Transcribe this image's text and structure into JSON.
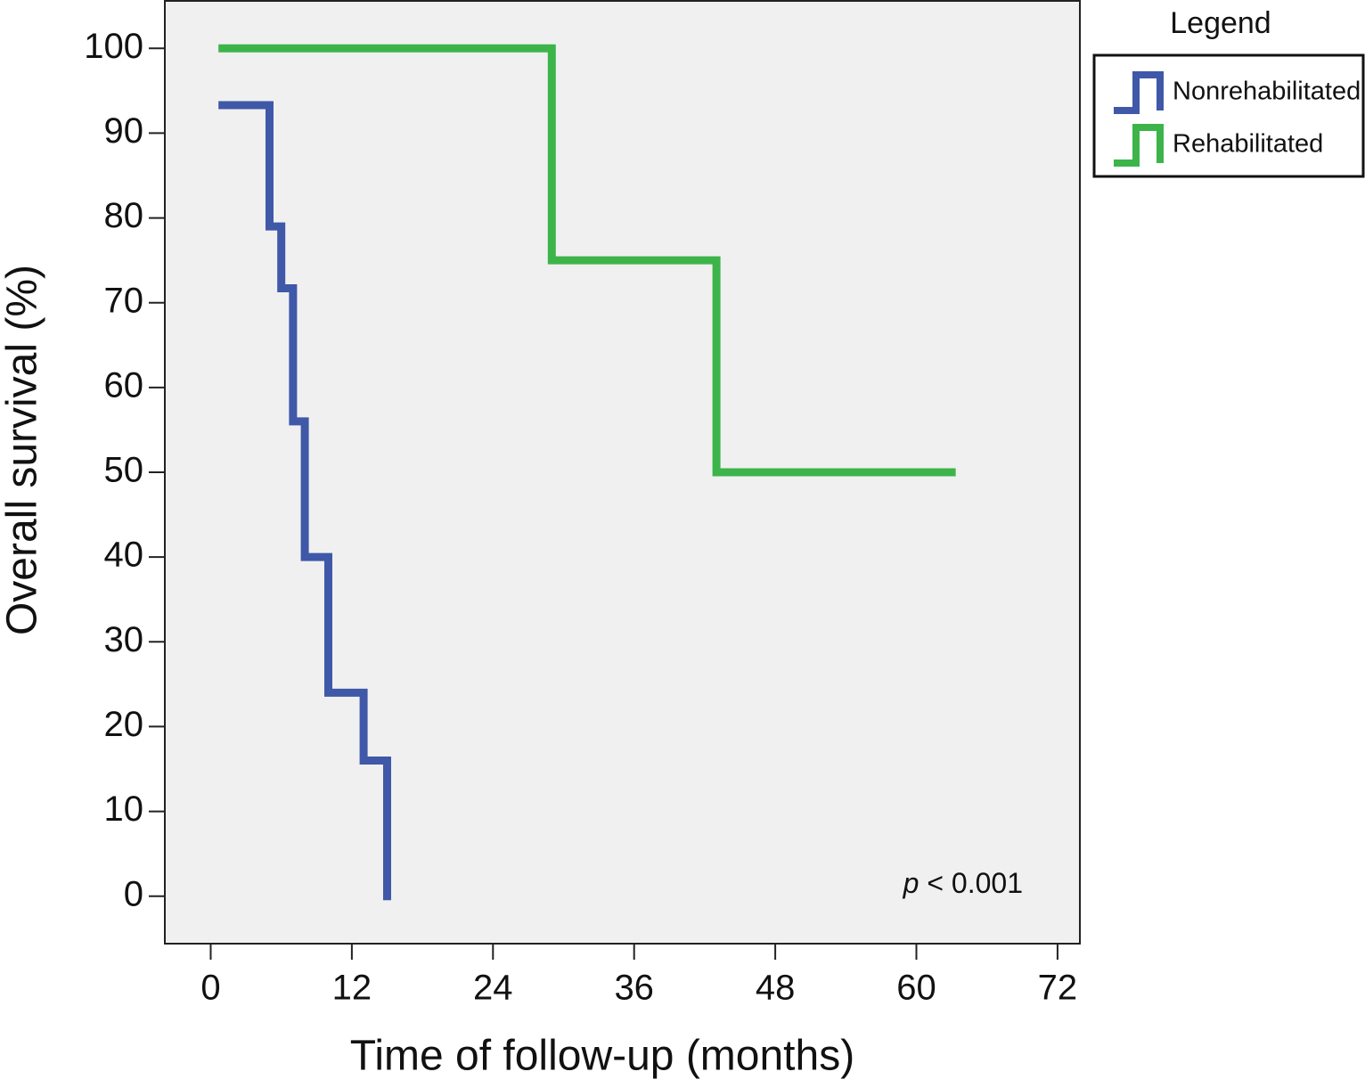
{
  "chart_data": {
    "type": "step",
    "x_label": "Time of follow-up (months)",
    "y_label": "Overall survival (%)",
    "xlim": [
      -3.9,
      73.9
    ],
    "ylim": [
      -5.6,
      105.6
    ],
    "xticks": [
      0,
      12,
      24,
      36,
      48,
      60,
      72
    ],
    "yticks": [
      0,
      10,
      20,
      30,
      40,
      50,
      60,
      70,
      80,
      90,
      100
    ],
    "legend_title": "Legend",
    "legend_position": "outside-top-right",
    "annotation": {
      "variable": "p",
      "text": "< 0.001"
    },
    "series": [
      {
        "name": "Nonrehabilitated",
        "color": "#3f58a8",
        "x": [
          1,
          5,
          6,
          7,
          8,
          10,
          13,
          15
        ],
        "values": [
          93.3,
          79.0,
          71.7,
          56.0,
          40.0,
          24.0,
          16.0,
          0
        ]
      },
      {
        "name": "Rehabilitated",
        "color": "#3cb44a",
        "x": [
          1,
          29,
          43,
          63
        ],
        "values": [
          100,
          75,
          50,
          50
        ]
      }
    ]
  }
}
